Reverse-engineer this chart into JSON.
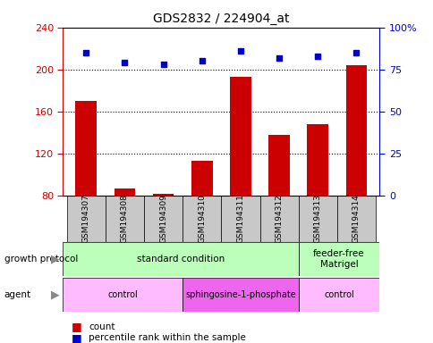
{
  "title": "GDS2832 / 224904_at",
  "samples": [
    "GSM194307",
    "GSM194308",
    "GSM194309",
    "GSM194310",
    "GSM194311",
    "GSM194312",
    "GSM194313",
    "GSM194314"
  ],
  "counts": [
    170,
    87,
    82,
    113,
    193,
    138,
    148,
    204
  ],
  "percentile_ranks": [
    85,
    79,
    78,
    80,
    86,
    82,
    83,
    85
  ],
  "ylim_left": [
    80,
    240
  ],
  "ylim_right": [
    0,
    100
  ],
  "yticks_left": [
    80,
    120,
    160,
    200,
    240
  ],
  "yticks_right": [
    0,
    25,
    50,
    75,
    100
  ],
  "bar_color": "#cc0000",
  "dot_color": "#0000cc",
  "growth_protocol_groups": [
    {
      "label": "standard condition",
      "start": 0,
      "end": 6,
      "color": "#bbffbb"
    },
    {
      "label": "feeder-free\nMatrigel",
      "start": 6,
      "end": 8,
      "color": "#bbffbb"
    }
  ],
  "agent_groups": [
    {
      "label": "control",
      "start": 0,
      "end": 3,
      "color": "#ffbbff"
    },
    {
      "label": "sphingosine-1-phosphate",
      "start": 3,
      "end": 6,
      "color": "#ee66ee"
    },
    {
      "label": "control",
      "start": 6,
      "end": 8,
      "color": "#ffbbff"
    }
  ],
  "legend_count_label": "count",
  "legend_percentile_label": "percentile rank within the sample",
  "growth_protocol_label": "growth protocol",
  "agent_label": "agent",
  "left_axis_color": "#cc0000",
  "right_axis_color": "#0000cc",
  "xtick_bg_color": "#c8c8c8",
  "fig_bg_color": "#ffffff"
}
